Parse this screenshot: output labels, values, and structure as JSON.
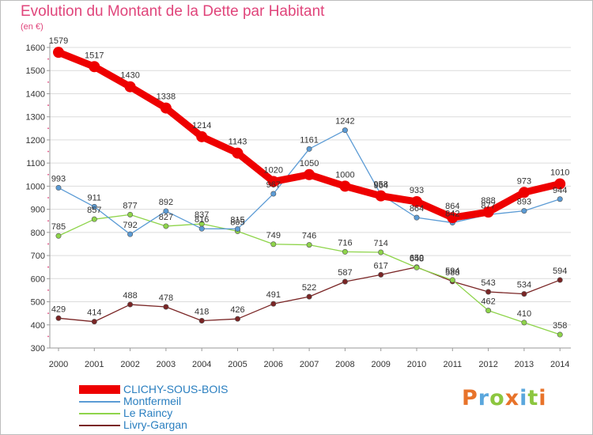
{
  "title": "Evolution du Montant de la Dette par Habitant",
  "unit": "(en €)",
  "logo": "Proxiti",
  "logo_colors": [
    "#e8732a",
    "#5ba7dd",
    "#8cc63f",
    "#e8732a",
    "#5ba7dd",
    "#8cc63f",
    "#e8732a"
  ],
  "chart_data": {
    "type": "line",
    "title": "Evolution du Montant de la Dette par Habitant",
    "ylabel": "(en €)",
    "xlabel": "",
    "x": [
      "2000",
      "2001",
      "2002",
      "2003",
      "2004",
      "2005",
      "2006",
      "2007",
      "2008",
      "2009",
      "2010",
      "2011",
      "2012",
      "2013",
      "2014"
    ],
    "ylim": [
      300,
      1600
    ],
    "yticks": [
      "300",
      "400",
      "500",
      "600",
      "700",
      "800",
      "900",
      "1000",
      "1100",
      "1200",
      "1300",
      "1400",
      "1500",
      "1600"
    ],
    "grid": "horizontal",
    "legend": "bottom-left",
    "series": [
      {
        "name": "CLICHY-SOUS-BOIS",
        "color": "#ee0000",
        "values": [
          1579,
          1517,
          1430,
          1338,
          1214,
          1143,
          1020,
          1050,
          1000,
          958,
          933,
          864,
          888,
          973,
          1010
        ]
      },
      {
        "name": "Montfermeil",
        "color": "#5b9bd5",
        "values": [
          993,
          911,
          792,
          892,
          816,
          815,
          967,
          1161,
          1242,
          964,
          864,
          842,
          877,
          893,
          944
        ]
      },
      {
        "name": "Le Raincy",
        "color": "#8ed44a",
        "values": [
          785,
          857,
          877,
          827,
          837,
          805,
          749,
          746,
          716,
          714,
          648,
          594,
          462,
          410,
          358
        ]
      },
      {
        "name": "Livry-Gargan",
        "color": "#7a2525",
        "values": [
          429,
          414,
          488,
          478,
          418,
          426,
          491,
          522,
          587,
          617,
          650,
          588,
          543,
          534,
          594
        ]
      }
    ]
  }
}
